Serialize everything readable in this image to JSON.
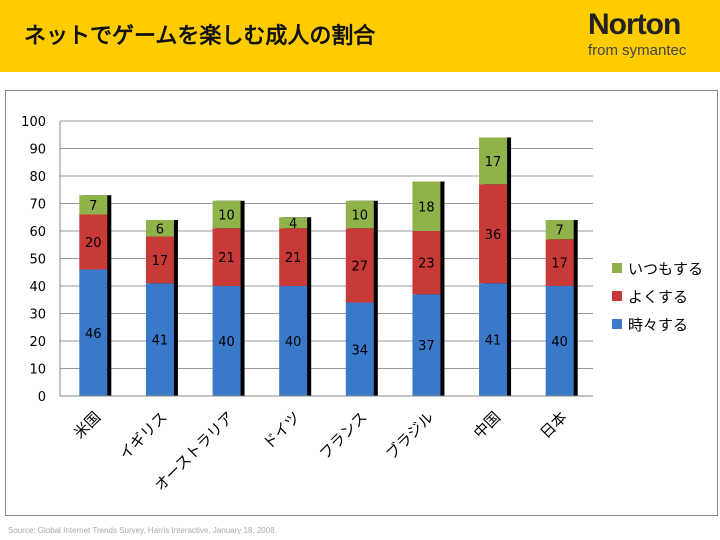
{
  "header": {
    "title": "ネットでゲームを楽しむ成人の割合",
    "logo_main": "Norton",
    "logo_sub": "from symantec"
  },
  "source": "Source:  Global Internet Trends Survey, Harris Interactive, January 18, 2008.",
  "chart_data": {
    "type": "bar",
    "stacked": true,
    "title": "ネットでゲームを楽しむ成人の割合",
    "categories": [
      "米国",
      "イギリス",
      "オーストラリア",
      "ドイツ",
      "フランス",
      "ブラジル",
      "中国",
      "日本"
    ],
    "series": [
      {
        "name": "時々する",
        "color": "#3a78c9",
        "values": [
          46,
          41,
          40,
          40,
          34,
          37,
          41,
          40
        ]
      },
      {
        "name": "よくする",
        "color": "#c83a37",
        "values": [
          20,
          17,
          21,
          21,
          27,
          23,
          36,
          17
        ]
      },
      {
        "name": "いつもする",
        "color": "#8fb24a",
        "values": [
          7,
          6,
          10,
          4,
          10,
          18,
          17,
          7
        ]
      }
    ],
    "ylim": [
      0,
      100
    ],
    "yticks": [
      0,
      10,
      20,
      30,
      40,
      50,
      60,
      70,
      80,
      90,
      100
    ],
    "grid": true,
    "legend": "right"
  }
}
